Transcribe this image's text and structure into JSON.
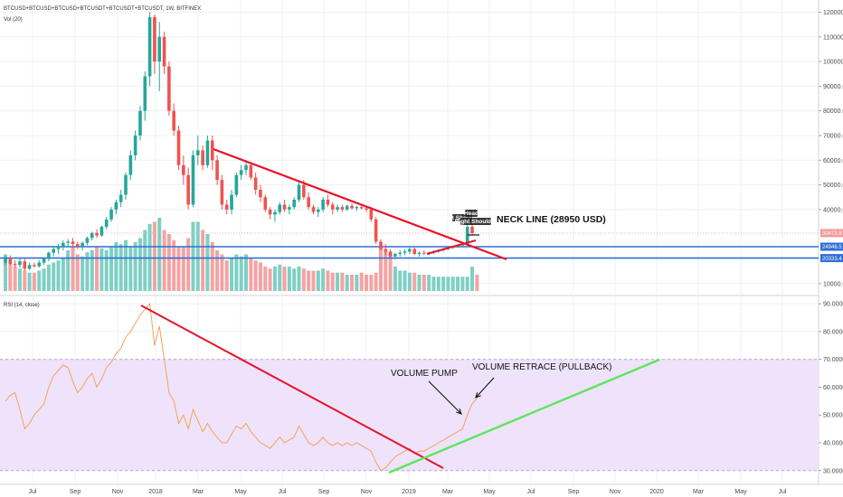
{
  "header": {
    "symbol": "BTCUSD+BTCUSD+BTCUSD+BTCUSDT+BTCUSDT+BTCUSDT, 1W, BITFINEX",
    "volume_label": "Vol (20)",
    "rsi_label": "RSI (14, close)"
  },
  "colors": {
    "up": "#26a69a",
    "down": "#ef5350",
    "vol_up": "#7fcfc4",
    "vol_down": "#f4a3a3",
    "trendline": "#e8132b",
    "support": "#2f6fd6",
    "rsi_line": "#f5a15b",
    "rsi_band": "#efe3fb",
    "rsi_trend": "#5ce65c",
    "price_badge": "#f29a9a",
    "level_badge": "#2f6fd6"
  },
  "annotations": {
    "neckline": "NECK LINE (28950 USD)",
    "left_shoulder": "Left Shoulder",
    "head": "Head",
    "right_shoulder": "Right Shoulder",
    "volume_pump": "VOLUME PUMP",
    "volume_retrace": "VOLUME RETRACE (PULLBACK)"
  },
  "price_badges": {
    "current": "30473.8",
    "level_high": "24946.5",
    "level_low": "20333.4"
  },
  "chart_data": [
    {
      "type": "candlestick",
      "x_ticks": [
        "Jul",
        "Sep",
        "Nov",
        "2018",
        "Mar",
        "May",
        "Jul",
        "Sep",
        "Nov",
        "2019",
        "Mar",
        "May",
        "Jul",
        "Sep",
        "Nov",
        "2020",
        "Mar",
        "May",
        "Jul"
      ],
      "y_ticks": [
        120000,
        110000,
        100000,
        90000,
        80000,
        70000,
        60000,
        50000,
        40000,
        10000
      ],
      "ylim": [
        7000,
        122000
      ],
      "levels": [
        24946.5,
        20333.4
      ],
      "current_price": 30473.8,
      "neckline_price": 28950,
      "series": [
        {
          "values": [
            {
              "o": 18500,
              "h": 21000,
              "l": 17500,
              "c": 20000
            },
            {
              "o": 20000,
              "h": 21500,
              "l": 17500,
              "c": 18000
            },
            {
              "o": 18000,
              "h": 19500,
              "l": 16500,
              "c": 17500
            },
            {
              "o": 17500,
              "h": 20000,
              "l": 16500,
              "c": 19000
            },
            {
              "o": 19000,
              "h": 20000,
              "l": 15000,
              "c": 16000
            },
            {
              "o": 16000,
              "h": 18500,
              "l": 15500,
              "c": 17500
            },
            {
              "o": 17500,
              "h": 18500,
              "l": 16500,
              "c": 17000
            },
            {
              "o": 17000,
              "h": 19500,
              "l": 16500,
              "c": 18500
            },
            {
              "o": 18500,
              "h": 20500,
              "l": 17500,
              "c": 20000
            },
            {
              "o": 20000,
              "h": 23000,
              "l": 19000,
              "c": 22500
            },
            {
              "o": 22500,
              "h": 25000,
              "l": 21000,
              "c": 24000
            },
            {
              "o": 24000,
              "h": 26000,
              "l": 22000,
              "c": 25000
            },
            {
              "o": 25000,
              "h": 27500,
              "l": 23500,
              "c": 26500
            },
            {
              "o": 26500,
              "h": 28000,
              "l": 25000,
              "c": 27000
            },
            {
              "o": 27000,
              "h": 28500,
              "l": 25000,
              "c": 26000
            },
            {
              "o": 26000,
              "h": 27000,
              "l": 24000,
              "c": 25000
            },
            {
              "o": 25000,
              "h": 27000,
              "l": 23500,
              "c": 26500
            },
            {
              "o": 26500,
              "h": 29000,
              "l": 25500,
              "c": 28500
            },
            {
              "o": 28500,
              "h": 31000,
              "l": 27500,
              "c": 30500
            },
            {
              "o": 30500,
              "h": 32000,
              "l": 28500,
              "c": 29500
            },
            {
              "o": 29500,
              "h": 33500,
              "l": 29000,
              "c": 33000
            },
            {
              "o": 33000,
              "h": 37000,
              "l": 32000,
              "c": 36000
            },
            {
              "o": 36000,
              "h": 41000,
              "l": 35000,
              "c": 40000
            },
            {
              "o": 40000,
              "h": 44000,
              "l": 38000,
              "c": 43000
            },
            {
              "o": 43000,
              "h": 48000,
              "l": 41000,
              "c": 46000
            },
            {
              "o": 46000,
              "h": 55000,
              "l": 44000,
              "c": 54000
            },
            {
              "o": 54000,
              "h": 64000,
              "l": 52000,
              "c": 62000
            },
            {
              "o": 62000,
              "h": 72000,
              "l": 60000,
              "c": 70000
            },
            {
              "o": 70000,
              "h": 82000,
              "l": 68000,
              "c": 80000
            },
            {
              "o": 80000,
              "h": 96000,
              "l": 76000,
              "c": 94000
            },
            {
              "o": 94000,
              "h": 120000,
              "l": 90000,
              "c": 118000
            },
            {
              "o": 118000,
              "h": 119000,
              "l": 95000,
              "c": 100000
            },
            {
              "o": 100000,
              "h": 116000,
              "l": 88000,
              "c": 110000
            },
            {
              "o": 110000,
              "h": 112000,
              "l": 95000,
              "c": 98000
            },
            {
              "o": 98000,
              "h": 100000,
              "l": 78000,
              "c": 80000
            },
            {
              "o": 80000,
              "h": 83000,
              "l": 70000,
              "c": 72000
            },
            {
              "o": 72000,
              "h": 74000,
              "l": 56000,
              "c": 58000
            },
            {
              "o": 58000,
              "h": 62000,
              "l": 50000,
              "c": 54000
            },
            {
              "o": 54000,
              "h": 57000,
              "l": 40000,
              "c": 42000
            },
            {
              "o": 42000,
              "h": 64000,
              "l": 41000,
              "c": 62000
            },
            {
              "o": 62000,
              "h": 70000,
              "l": 58000,
              "c": 64000
            },
            {
              "o": 64000,
              "h": 66000,
              "l": 56000,
              "c": 58000
            },
            {
              "o": 58000,
              "h": 70000,
              "l": 57000,
              "c": 68000
            },
            {
              "o": 68000,
              "h": 70000,
              "l": 56000,
              "c": 60000
            },
            {
              "o": 60000,
              "h": 62000,
              "l": 50000,
              "c": 52000
            },
            {
              "o": 52000,
              "h": 54000,
              "l": 40000,
              "c": 42000
            },
            {
              "o": 42000,
              "h": 44000,
              "l": 38000,
              "c": 40000
            },
            {
              "o": 40000,
              "h": 48000,
              "l": 38000,
              "c": 46000
            },
            {
              "o": 46000,
              "h": 55000,
              "l": 45000,
              "c": 54000
            },
            {
              "o": 54000,
              "h": 58000,
              "l": 52000,
              "c": 56000
            },
            {
              "o": 56000,
              "h": 60000,
              "l": 54000,
              "c": 58000
            },
            {
              "o": 58000,
              "h": 59000,
              "l": 52000,
              "c": 53000
            },
            {
              "o": 53000,
              "h": 55000,
              "l": 46000,
              "c": 48000
            },
            {
              "o": 48000,
              "h": 50000,
              "l": 43000,
              "c": 45000
            },
            {
              "o": 45000,
              "h": 46000,
              "l": 39000,
              "c": 40000
            },
            {
              "o": 40000,
              "h": 41000,
              "l": 36000,
              "c": 38000
            },
            {
              "o": 38000,
              "h": 40000,
              "l": 35000,
              "c": 39000
            },
            {
              "o": 39000,
              "h": 43000,
              "l": 38000,
              "c": 42000
            },
            {
              "o": 42000,
              "h": 44000,
              "l": 39000,
              "c": 40000
            },
            {
              "o": 40000,
              "h": 42000,
              "l": 38000,
              "c": 41000
            },
            {
              "o": 41000,
              "h": 45000,
              "l": 40000,
              "c": 44000
            },
            {
              "o": 44000,
              "h": 51000,
              "l": 43000,
              "c": 50000
            },
            {
              "o": 50000,
              "h": 52000,
              "l": 44000,
              "c": 45000
            },
            {
              "o": 45000,
              "h": 47000,
              "l": 40000,
              "c": 41000
            },
            {
              "o": 41000,
              "h": 42000,
              "l": 38000,
              "c": 39000
            },
            {
              "o": 39000,
              "h": 41000,
              "l": 37000,
              "c": 40000
            },
            {
              "o": 40000,
              "h": 45000,
              "l": 39000,
              "c": 44000
            },
            {
              "o": 44000,
              "h": 46000,
              "l": 41000,
              "c": 42000
            },
            {
              "o": 42000,
              "h": 43000,
              "l": 38000,
              "c": 40000
            },
            {
              "o": 40000,
              "h": 42000,
              "l": 39000,
              "c": 41000
            },
            {
              "o": 41000,
              "h": 42000,
              "l": 39000,
              "c": 40000
            },
            {
              "o": 40000,
              "h": 42000,
              "l": 39500,
              "c": 41500
            },
            {
              "o": 41500,
              "h": 42500,
              "l": 40000,
              "c": 40500
            },
            {
              "o": 40500,
              "h": 41500,
              "l": 39500,
              "c": 41000
            },
            {
              "o": 41000,
              "h": 42000,
              "l": 40000,
              "c": 40500
            },
            {
              "o": 40500,
              "h": 41500,
              "l": 39000,
              "c": 40000
            },
            {
              "o": 40000,
              "h": 41000,
              "l": 35000,
              "c": 36000
            },
            {
              "o": 36000,
              "h": 37000,
              "l": 26000,
              "c": 27000
            },
            {
              "o": 27000,
              "h": 28000,
              "l": 23500,
              "c": 24000
            },
            {
              "o": 24000,
              "h": 26000,
              "l": 21500,
              "c": 23000
            },
            {
              "o": 23000,
              "h": 24000,
              "l": 20500,
              "c": 21000
            },
            {
              "o": 21000,
              "h": 22500,
              "l": 19800,
              "c": 22000
            },
            {
              "o": 22000,
              "h": 23500,
              "l": 21000,
              "c": 22500
            },
            {
              "o": 22500,
              "h": 24000,
              "l": 21500,
              "c": 23000
            },
            {
              "o": 23000,
              "h": 24500,
              "l": 22000,
              "c": 24000
            },
            {
              "o": 24000,
              "h": 25000,
              "l": 21500,
              "c": 22000
            },
            {
              "o": 22000,
              "h": 23000,
              "l": 21000,
              "c": 22500
            },
            {
              "o": 22500,
              "h": 23500,
              "l": 21500,
              "c": 22200
            },
            {
              "o": 22200,
              "h": 23000,
              "l": 21500,
              "c": 22600
            },
            {
              "o": 22600,
              "h": 23500,
              "l": 22000,
              "c": 23000
            },
            {
              "o": 23000,
              "h": 24000,
              "l": 22500,
              "c": 23500
            },
            {
              "o": 23500,
              "h": 24500,
              "l": 23000,
              "c": 24000
            },
            {
              "o": 24000,
              "h": 25000,
              "l": 23500,
              "c": 24500
            },
            {
              "o": 24500,
              "h": 25500,
              "l": 24000,
              "c": 25000
            },
            {
              "o": 25000,
              "h": 26000,
              "l": 24500,
              "c": 25500
            },
            {
              "o": 25500,
              "h": 26500,
              "l": 25000,
              "c": 26000
            },
            {
              "o": 26000,
              "h": 34000,
              "l": 25500,
              "c": 33000
            },
            {
              "o": 33000,
              "h": 35000,
              "l": 29500,
              "c": 30473.8
            }
          ]
        }
      ]
    },
    {
      "type": "bar",
      "title": "Vol (20)",
      "values": [
        18,
        14,
        12,
        11,
        10,
        9,
        9,
        10,
        11,
        13,
        14,
        15,
        16,
        20,
        22,
        18,
        17,
        19,
        20,
        22,
        21,
        20,
        22,
        24,
        23,
        25,
        22,
        24,
        26,
        30,
        33,
        34,
        36,
        30,
        28,
        25,
        22,
        22,
        26,
        34,
        34,
        30,
        28,
        24,
        20,
        18,
        15,
        16,
        18,
        17,
        18,
        16,
        15,
        14,
        12,
        11,
        12,
        13,
        12,
        12,
        11,
        12,
        11,
        10,
        10,
        10,
        11,
        10,
        9,
        9,
        9,
        8,
        8,
        8,
        9,
        8,
        8,
        9,
        22,
        20,
        18,
        12,
        10,
        10,
        9,
        9,
        8,
        8,
        8,
        7,
        7,
        7,
        7,
        7,
        7,
        7,
        7,
        12,
        8
      ],
      "up": [
        1,
        0,
        0,
        1,
        0,
        1,
        0,
        1,
        1,
        1,
        1,
        1,
        1,
        1,
        0,
        0,
        1,
        1,
        1,
        0,
        1,
        1,
        1,
        1,
        1,
        1,
        1,
        1,
        1,
        1,
        1,
        0,
        1,
        0,
        0,
        0,
        0,
        0,
        0,
        1,
        1,
        0,
        1,
        0,
        0,
        0,
        0,
        1,
        1,
        1,
        1,
        0,
        0,
        0,
        0,
        0,
        1,
        1,
        0,
        1,
        1,
        1,
        0,
        0,
        0,
        1,
        1,
        0,
        0,
        1,
        0,
        1,
        0,
        1,
        0,
        0,
        0,
        0,
        0,
        0,
        0,
        1,
        1,
        1,
        1,
        0,
        1,
        0,
        1,
        1,
        1,
        1,
        1,
        1,
        1,
        1,
        1,
        1,
        0
      ],
      "ylim": [
        0,
        40
      ]
    },
    {
      "type": "line",
      "title": "RSI (14, close)",
      "y_ticks": [
        90,
        80,
        70,
        60,
        50,
        40,
        30
      ],
      "ylim": [
        27,
        92
      ],
      "band": [
        30,
        70
      ],
      "series": [
        {
          "values": [
            55,
            57,
            58,
            52,
            45,
            47,
            50,
            52,
            54,
            60,
            64,
            66,
            68,
            67,
            62,
            58,
            60,
            63,
            65,
            60,
            63,
            67,
            69,
            72,
            74,
            78,
            80,
            83,
            86,
            88,
            90,
            75,
            82,
            70,
            58,
            55,
            47,
            50,
            45,
            52,
            48,
            44,
            47,
            44,
            42,
            40,
            40,
            43,
            46,
            45,
            47,
            44,
            42,
            40,
            39,
            38,
            40,
            42,
            40,
            41,
            42,
            46,
            43,
            40,
            39,
            40,
            42,
            40,
            39,
            40,
            39,
            40,
            39,
            40,
            39,
            38,
            37,
            33,
            30,
            31,
            33,
            35,
            36,
            37,
            38,
            36,
            37,
            37,
            38,
            39,
            40,
            41,
            42,
            43,
            44,
            45,
            50,
            54,
            56
          ]
        }
      ]
    }
  ]
}
